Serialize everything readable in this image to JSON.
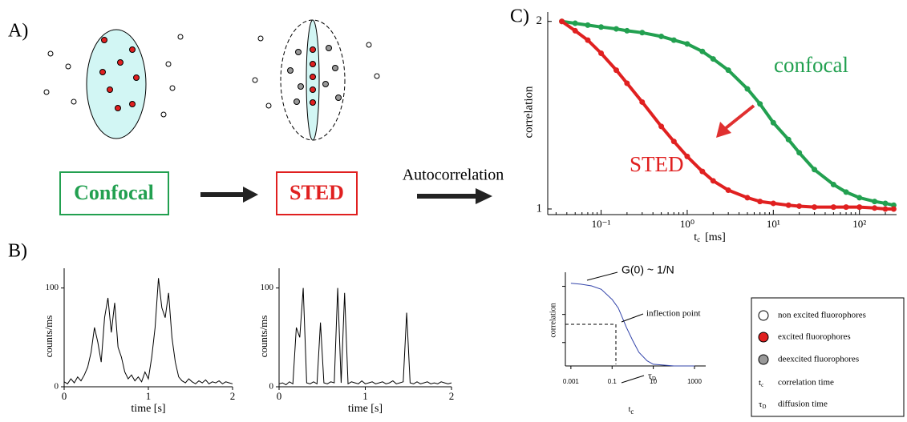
{
  "panels": {
    "a": "A)",
    "b": "B)",
    "c": "C)"
  },
  "diagram": {
    "confocal_box": "Confocal",
    "sted_box": "STED",
    "arrow_label": "Autocorrelation"
  },
  "legend": [
    {
      "label": "non excited fluorophores"
    },
    {
      "label": "excited fluorophores"
    },
    {
      "label": "deexcited fluorophores"
    },
    {
      "symbol": "t",
      "sub": "c",
      "label": "correlation time"
    },
    {
      "symbol": "τ",
      "sub": "D",
      "label": "diffusion time"
    }
  ],
  "chart_data": [
    {
      "type": "line",
      "ylabel": "counts/ms",
      "xlabel": "time [s]",
      "xlim": [
        0,
        2
      ],
      "ylim": [
        0,
        120
      ],
      "xticks": [
        0,
        1,
        2
      ],
      "yticks": [
        0,
        100
      ],
      "x": [
        0,
        0.04,
        0.08,
        0.12,
        0.16,
        0.2,
        0.24,
        0.28,
        0.32,
        0.36,
        0.4,
        0.44,
        0.48,
        0.52,
        0.56,
        0.6,
        0.64,
        0.68,
        0.72,
        0.76,
        0.8,
        0.84,
        0.88,
        0.92,
        0.96,
        1,
        1.04,
        1.08,
        1.12,
        1.16,
        1.2,
        1.24,
        1.28,
        1.32,
        1.36,
        1.4,
        1.44,
        1.48,
        1.52,
        1.56,
        1.6,
        1.64,
        1.68,
        1.72,
        1.76,
        1.8,
        1.84,
        1.88,
        1.92,
        1.96,
        2
      ],
      "series": [
        {
          "color": "#000000",
          "values": [
            5,
            3,
            8,
            4,
            10,
            6,
            12,
            20,
            35,
            60,
            45,
            25,
            70,
            90,
            55,
            85,
            40,
            30,
            15,
            8,
            12,
            6,
            10,
            5,
            15,
            8,
            30,
            60,
            110,
            80,
            70,
            95,
            50,
            25,
            10,
            6,
            4,
            8,
            5,
            3,
            6,
            4,
            7,
            3,
            5,
            4,
            6,
            3,
            5,
            4,
            3
          ]
        }
      ]
    },
    {
      "type": "line",
      "ylabel": "counts/ms",
      "xlabel": "time [s]",
      "xlim": [
        0,
        2
      ],
      "ylim": [
        0,
        120
      ],
      "xticks": [
        0,
        1,
        2
      ],
      "yticks": [
        0,
        100
      ],
      "x": [
        0,
        0.04,
        0.08,
        0.12,
        0.16,
        0.2,
        0.24,
        0.28,
        0.32,
        0.36,
        0.4,
        0.44,
        0.48,
        0.52,
        0.56,
        0.6,
        0.64,
        0.68,
        0.72,
        0.76,
        0.8,
        0.84,
        0.88,
        0.92,
        0.96,
        1,
        1.04,
        1.08,
        1.12,
        1.16,
        1.2,
        1.24,
        1.28,
        1.32,
        1.36,
        1.4,
        1.44,
        1.48,
        1.52,
        1.56,
        1.6,
        1.64,
        1.68,
        1.72,
        1.76,
        1.8,
        1.84,
        1.88,
        1.92,
        1.96,
        2
      ],
      "series": [
        {
          "color": "#000000",
          "values": [
            3,
            4,
            2,
            5,
            3,
            60,
            50,
            100,
            4,
            3,
            5,
            3,
            65,
            4,
            3,
            5,
            4,
            100,
            4,
            95,
            3,
            5,
            4,
            3,
            6,
            3,
            4,
            5,
            3,
            4,
            5,
            3,
            4,
            6,
            3,
            4,
            5,
            75,
            4,
            3,
            5,
            3,
            4,
            5,
            3,
            4,
            3,
            5,
            4,
            3,
            4
          ]
        }
      ]
    },
    {
      "type": "line",
      "ylabel": "correlation",
      "xlabel": [
        "t",
        "c",
        "[ms]"
      ],
      "xlog": true,
      "markers": true,
      "xlim": [
        0.024,
        270
      ],
      "ylim": [
        0.97,
        2.05
      ],
      "xticks": [
        {
          "value": 0.1,
          "label": "10⁻¹"
        },
        {
          "value": 1,
          "label": "10⁰"
        },
        {
          "value": 10,
          "label": "10¹"
        },
        {
          "value": 100,
          "label": "10²"
        }
      ],
      "yticks": [
        1,
        2
      ],
      "annotations": [
        "confocal",
        "STED"
      ],
      "x": [
        0.035,
        0.05,
        0.07,
        0.1,
        0.15,
        0.2,
        0.3,
        0.5,
        0.7,
        1,
        1.5,
        2,
        3,
        5,
        7,
        10,
        15,
        20,
        30,
        50,
        70,
        100,
        150,
        200,
        250
      ],
      "series": [
        {
          "name": "confocal",
          "color": "#22a050",
          "values": [
            2.0,
            1.99,
            1.98,
            1.97,
            1.96,
            1.95,
            1.94,
            1.92,
            1.9,
            1.88,
            1.84,
            1.8,
            1.74,
            1.64,
            1.56,
            1.46,
            1.37,
            1.3,
            1.21,
            1.13,
            1.09,
            1.06,
            1.04,
            1.03,
            1.02
          ]
        },
        {
          "name": "STED",
          "color": "#e02020",
          "values": [
            2.0,
            1.95,
            1.9,
            1.83,
            1.74,
            1.67,
            1.57,
            1.44,
            1.36,
            1.28,
            1.2,
            1.15,
            1.1,
            1.06,
            1.04,
            1.03,
            1.02,
            1.015,
            1.01,
            1.01,
            1.01,
            1.01,
            1.005,
            1.0,
            1.0
          ]
        }
      ]
    },
    {
      "type": "line",
      "ylabel": "correlation",
      "xlabel": [
        "t",
        "c"
      ],
      "xlog": true,
      "xlim": [
        0.00054,
        3500
      ],
      "ylim": [
        0,
        1.1
      ],
      "xticks": [
        {
          "value": 0.001,
          "label": "0.001"
        },
        0.1,
        10,
        1000
      ],
      "annotations": [
        "G(0) ~ 1/N",
        "inflection point",
        [
          "τ",
          "D"
        ]
      ],
      "x": [
        0.001,
        0.003,
        0.01,
        0.03,
        0.1,
        0.2,
        0.3,
        0.5,
        1,
        2,
        5,
        10,
        30,
        100,
        1000
      ],
      "series": [
        {
          "color": "#3344aa",
          "values": [
            0.97,
            0.96,
            0.94,
            0.9,
            0.78,
            0.68,
            0.58,
            0.45,
            0.3,
            0.16,
            0.06,
            0.02,
            0.01,
            0,
            0
          ]
        }
      ]
    }
  ]
}
